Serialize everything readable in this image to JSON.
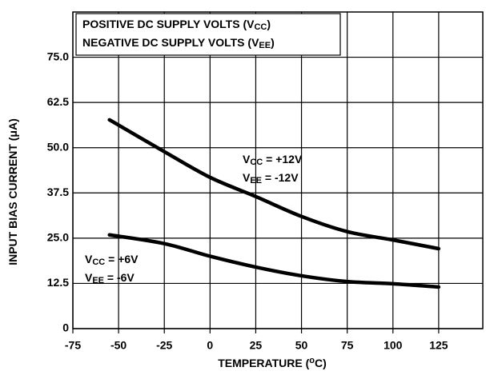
{
  "chart_data": {
    "type": "line",
    "x": [
      -55,
      -25,
      0,
      25,
      50,
      75,
      100,
      125
    ],
    "series": [
      {
        "color": "#000000",
        "values": [
          57.7,
          48.9,
          41.8,
          36.5,
          31.0,
          26.8,
          24.5,
          22.1
        ]
      },
      {
        "color": "#000000",
        "values": [
          25.9,
          23.5,
          20.0,
          17.0,
          14.6,
          13.0,
          12.4,
          11.5
        ]
      }
    ],
    "xlim": [
      -75,
      150
    ],
    "ylim": [
      0,
      87.5
    ],
    "xticks": [
      -75,
      -50,
      -25,
      0,
      25,
      50,
      75,
      100,
      125
    ],
    "yticks": [
      0,
      12.5,
      {
        "value": 25,
        "label": "25.0"
      },
      37.5,
      {
        "value": 50,
        "label": "50.0"
      },
      62.5,
      {
        "value": 75,
        "label": "75.0"
      }
    ],
    "grid": true,
    "xlabel": [
      {
        "text": "TEMPERATURE ("
      },
      {
        "text": "o",
        "shift": "super"
      },
      {
        "text": "C)"
      }
    ],
    "ylabel": [
      {
        "text": "INPUT BIAS CURRENT ("
      },
      {
        "text": "μ"
      },
      {
        "text": "A)"
      }
    ],
    "legend_box": [
      [
        {
          "text": "POSITIVE DC SUPPLY VOLTS (V"
        },
        {
          "text": "CC",
          "shift": "sub"
        },
        {
          "text": ")"
        }
      ],
      [
        {
          "text": "NEGATIVE DC SUPPLY VOLTS (V"
        },
        {
          "text": "EE",
          "shift": "sub"
        },
        {
          "text": ")"
        }
      ]
    ],
    "annotations": [
      [
        {
          "text": "V"
        },
        {
          "text": "CC",
          "shift": "sub"
        },
        {
          "text": " = +12V"
        }
      ],
      [
        {
          "text": "V"
        },
        {
          "text": "EE",
          "shift": "sub"
        },
        {
          "text": " = -12V"
        }
      ],
      [
        {
          "text": "V"
        },
        {
          "text": "CC",
          "shift": "sub"
        },
        {
          "text": " = +6V"
        }
      ],
      [
        {
          "text": "V"
        },
        {
          "text": "EE",
          "shift": "sub"
        },
        {
          "text": " = -6V"
        }
      ]
    ]
  }
}
